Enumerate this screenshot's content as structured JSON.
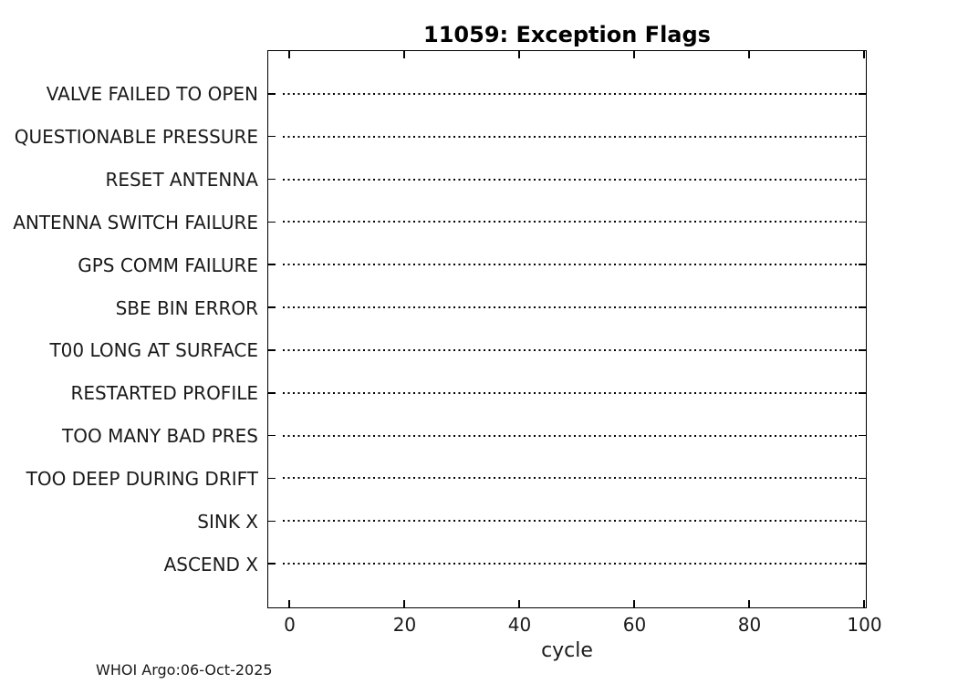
{
  "chart_data": {
    "type": "scatter",
    "title": "11059: Exception Flags",
    "xlabel": "cycle",
    "ylabel": "",
    "categories": [
      "VALVE FAILED TO OPEN",
      "QUESTIONABLE PRESSURE",
      "RESET ANTENNA",
      "ANTENNA SWITCH FAILURE",
      "GPS COMM FAILURE",
      "SBE BIN ERROR",
      "T00 LONG AT SURFACE",
      "RESTARTED PROFILE",
      "TOO MANY BAD PRES",
      "TOO DEEP DURING DRIFT",
      "SINK X",
      "ASCEND X"
    ],
    "points": [],
    "x_ticks": [
      0,
      20,
      40,
      60,
      80,
      100
    ],
    "xlim": [
      -4,
      100.5
    ],
    "grid": "horizontal-dotted",
    "legend": null,
    "line_color": "#000000",
    "background_color": "#ffffff"
  },
  "footer": {
    "credit": "WHOI Argo:06-Oct-2025"
  }
}
